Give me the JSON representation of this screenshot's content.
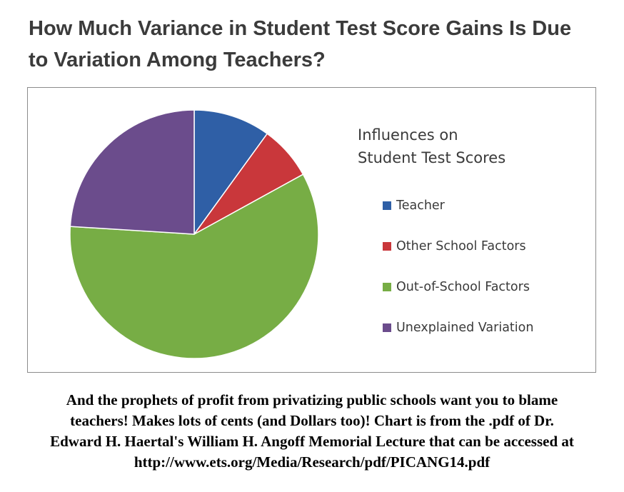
{
  "chart_data": {
    "type": "pie",
    "title_line1": "How Much Variance in Student Test Score Gains Is Due",
    "title_line2": "to Variation Among Teachers?",
    "legend_title_line1": "Influences on",
    "legend_title_line2": "Student Test Scores",
    "legend_position": "right",
    "slices": [
      {
        "label": "Teacher",
        "value": 10,
        "color": "#2f5fa6"
      },
      {
        "label": "Other School Factors",
        "value": 7,
        "color": "#c9373b"
      },
      {
        "label": "Out-of-School Factors",
        "value": 59,
        "color": "#77ad45"
      },
      {
        "label": "Unexplained Variation",
        "value": 24,
        "color": "#6b4c8c"
      }
    ]
  },
  "caption": {
    "line1": "And the prophets of profit from privatizing public schools want you to blame",
    "line2": "teachers! Makes lots of cents (and Dollars too)! Chart is from the .pdf of Dr.",
    "line3": "Edward H. Haertal's William H. Angoff Memorial Lecture that can be accessed at",
    "line4": "http://www.ets.org/Media/Research/pdf/PICANG14.pdf"
  }
}
